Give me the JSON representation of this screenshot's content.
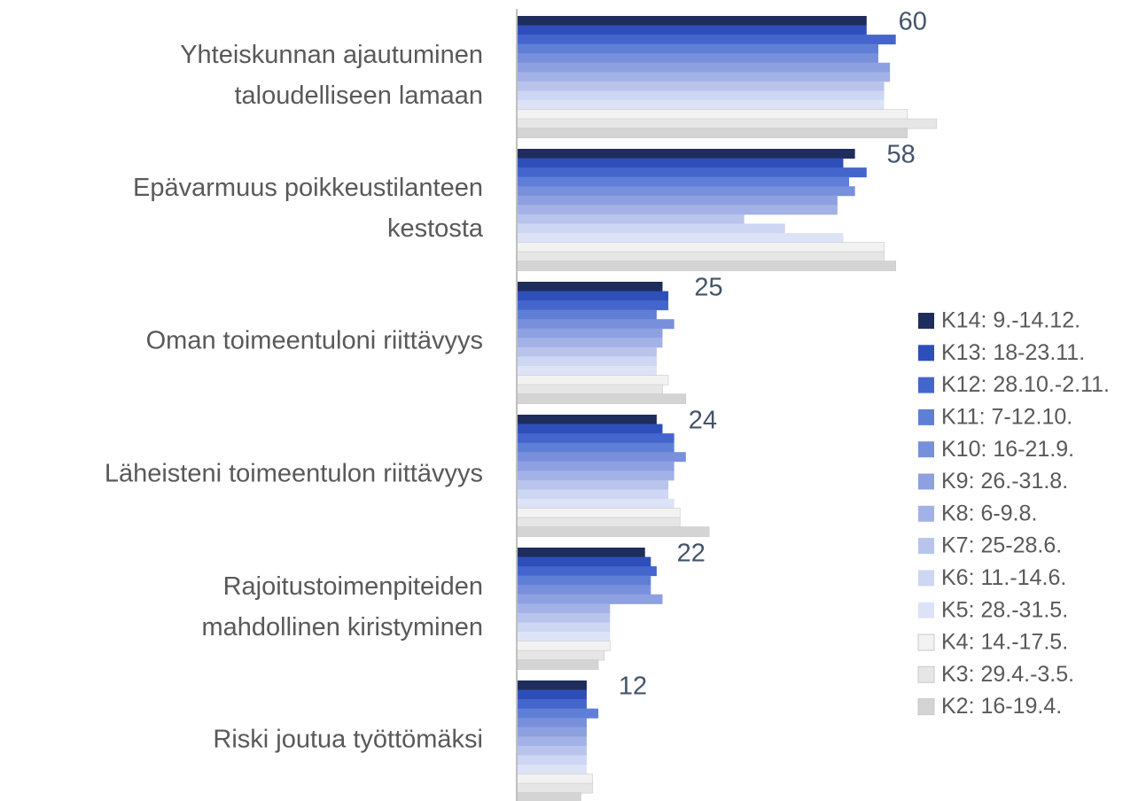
{
  "chart_data": {
    "type": "bar",
    "orientation": "horizontal",
    "categories": [
      "Yhteiskunnan ajautuminen\ntaloudelliseen lamaan",
      "Epävarmuus poikkeustilanteen\nkestosta",
      "Oman toimeentuloni riittävyys",
      "Läheisteni toimeentulon riittävyys",
      "Rajoitustoimenpiteiden\nmahdollinen kiristyminen",
      "Riski joutua työttömäksi"
    ],
    "xlim": [
      0,
      100
    ],
    "series": [
      {
        "name": "K14: 9.-14.12.",
        "color": "#1f2d5c",
        "values": [
          60,
          58,
          25,
          24,
          22,
          12
        ]
      },
      {
        "name": "K13: 18-23.11.",
        "color": "#2e4fba",
        "values": [
          60,
          56,
          26,
          25,
          23,
          12
        ]
      },
      {
        "name": "K12: 28.10.-2.11.",
        "color": "#4466cc",
        "values": [
          65,
          60,
          26,
          27,
          24,
          12
        ]
      },
      {
        "name": "K11: 7-12.10.",
        "color": "#5f7fd6",
        "values": [
          62,
          57,
          24,
          27,
          23,
          14
        ]
      },
      {
        "name": "K10: 16-21.9.",
        "color": "#7890dc",
        "values": [
          62,
          58,
          27,
          29,
          23,
          12
        ]
      },
      {
        "name": "K9: 26.-31.8.",
        "color": "#8da0e0",
        "values": [
          64,
          55,
          25,
          27,
          25,
          12
        ]
      },
      {
        "name": "K8: 6-9.8.",
        "color": "#a3b2e6",
        "values": [
          64,
          55,
          25,
          27,
          16,
          12
        ]
      },
      {
        "name": "K7: 25-28.6.",
        "color": "#b8c4ec",
        "values": [
          63,
          39,
          24,
          26,
          16,
          12
        ]
      },
      {
        "name": "K6: 11.-14.6.",
        "color": "#cdd6f2",
        "values": [
          63,
          46,
          24,
          26,
          16,
          12
        ]
      },
      {
        "name": "K5: 28.-31.5.",
        "color": "#dde3f6",
        "values": [
          63,
          56,
          24,
          27,
          16,
          12
        ]
      },
      {
        "name": "K4: 14.-17.5.",
        "color": "#f2f2f2",
        "values": [
          67,
          63,
          26,
          28,
          16,
          13
        ]
      },
      {
        "name": "K3: 29.4.-3.5.",
        "color": "#e6e6e6",
        "values": [
          72,
          63,
          25,
          28,
          15,
          13
        ]
      },
      {
        "name": "K2: 16-19.4.",
        "color": "#d4d4d4",
        "values": [
          67,
          65,
          29,
          33,
          14,
          11
        ]
      }
    ],
    "data_labels_series": 0
  }
}
